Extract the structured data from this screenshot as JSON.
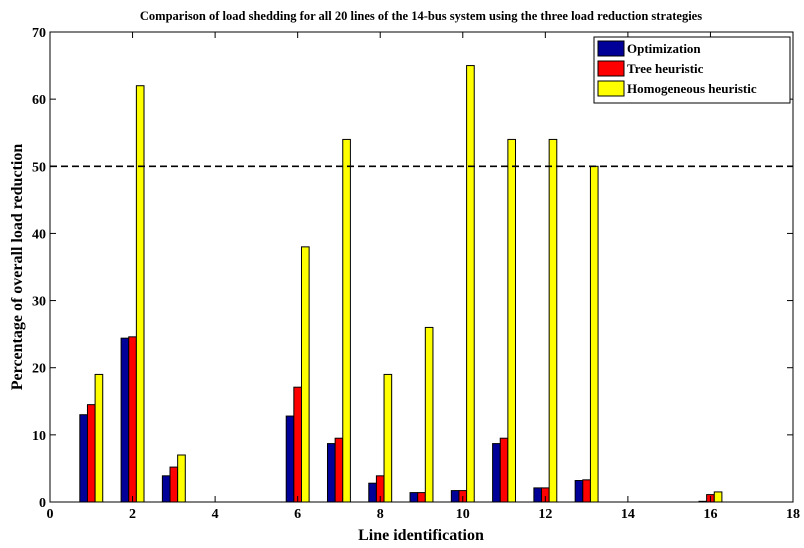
{
  "chart_data": {
    "type": "bar",
    "title": "Comparison of load shedding for all 20 lines of the 14-bus system using the three load reduction strategies",
    "xlabel": "Line identification",
    "ylabel": "Percentage of overall load reduction",
    "xlim": [
      0,
      18
    ],
    "ylim": [
      0,
      70
    ],
    "xticks": [
      0,
      2,
      4,
      6,
      8,
      10,
      12,
      14,
      16,
      18
    ],
    "yticks": [
      0,
      10,
      20,
      30,
      40,
      50,
      60,
      70
    ],
    "x": [
      1,
      2,
      3,
      4,
      5,
      6,
      7,
      8,
      9,
      10,
      11,
      12,
      13,
      14,
      15,
      16,
      17
    ],
    "series": [
      {
        "name": "Optimization",
        "color": "#000099",
        "values": [
          13,
          24.4,
          3.9,
          0,
          0,
          12.8,
          8.7,
          2.8,
          1.4,
          1.7,
          8.7,
          2.1,
          3.2,
          0,
          0,
          0.1,
          0
        ]
      },
      {
        "name": "Tree heuristic",
        "color": "#ff0000",
        "values": [
          14.5,
          24.6,
          5.2,
          0,
          0,
          17.1,
          9.5,
          3.9,
          1.4,
          1.7,
          9.5,
          2.1,
          3.3,
          0,
          0,
          1.1,
          0
        ]
      },
      {
        "name": "Homogeneous heuristic",
        "color": "#ffff00",
        "values": [
          19,
          62,
          7,
          0,
          0,
          38,
          54,
          19,
          26,
          65,
          54,
          54,
          50,
          0,
          0,
          1.5,
          0
        ]
      }
    ],
    "reference_line": {
      "y": 50,
      "style": "dashed"
    },
    "legend_position": "top-right",
    "grid": false
  }
}
